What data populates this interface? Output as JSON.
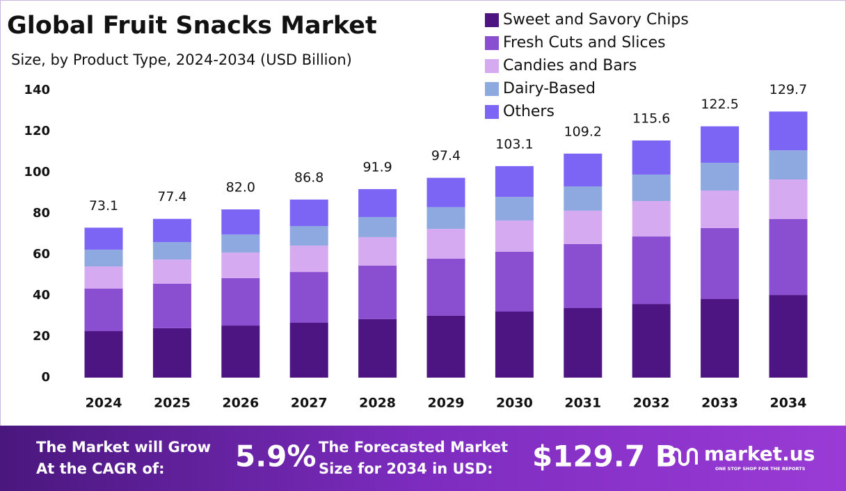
{
  "chart_data": {
    "type": "stacked_bar",
    "title": "Global Fruit Snacks Market",
    "subtitle": "Size, by Product Type, 2024-2034 (USD Billion)",
    "categories": [
      "2024",
      "2025",
      "2026",
      "2027",
      "2028",
      "2029",
      "2030",
      "2031",
      "2032",
      "2033",
      "2034"
    ],
    "series": [
      {
        "name": "Sweet and Savory Chips",
        "color": "#4c1582",
        "values": [
          22.7,
          24.1,
          25.4,
          26.8,
          28.5,
          30.2,
          32.2,
          33.9,
          35.9,
          38.3,
          40.3
        ]
      },
      {
        "name": "Fresh Cuts and Slices",
        "color": "#8a4fd0",
        "values": [
          20.7,
          21.7,
          23.1,
          24.7,
          26.1,
          27.8,
          29.2,
          31.2,
          32.9,
          34.6,
          37.0
        ]
      },
      {
        "name": "Candies and Bars",
        "color": "#d5aaf0",
        "values": [
          10.8,
          11.8,
          12.5,
          12.9,
          13.9,
          14.5,
          15.2,
          16.3,
          17.3,
          18.3,
          19.3
        ]
      },
      {
        "name": "Dairy-Based",
        "color": "#8ea8e0",
        "values": [
          8.2,
          8.5,
          8.8,
          9.5,
          9.8,
          10.6,
          11.5,
          11.8,
          12.9,
          13.5,
          14.2
        ]
      },
      {
        "name": "Others",
        "color": "#7c64f5",
        "values": [
          10.7,
          11.3,
          12.2,
          12.9,
          13.6,
          14.3,
          15.0,
          16.0,
          16.6,
          17.8,
          18.9
        ]
      }
    ],
    "totals": {
      "values": [
        73.1,
        77.4,
        82.0,
        86.8,
        91.9,
        97.4,
        103.1,
        109.2,
        115.6,
        122.5,
        129.7
      ],
      "value_labels": [
        "73.1",
        "77.4",
        "82.0",
        "86.8",
        "91.9",
        "97.4",
        "103.1",
        "109.2",
        "115.6",
        "122.5",
        "129.7"
      ]
    },
    "ylim": [
      0,
      140
    ],
    "yticks": [
      0,
      20,
      40,
      60,
      80,
      100,
      120,
      140
    ],
    "grid": false,
    "legend": "top-right"
  },
  "footer": {
    "cagr_text": [
      "The Market will Grow",
      "At the CAGR of:"
    ],
    "cagr": "5.9%",
    "forecast_text": [
      "The Forecasted Market",
      "Size for 2034 in USD:"
    ],
    "forecast": "$129.7 B",
    "brand": "market.us",
    "tagline": "ONE STOP SHOP FOR THE REPORTS"
  }
}
